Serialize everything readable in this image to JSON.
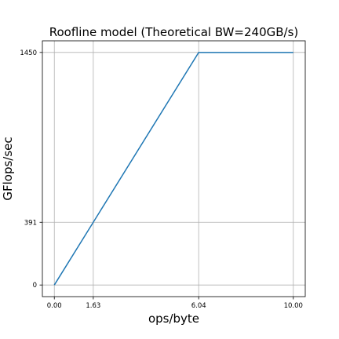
{
  "chart_data": {
    "type": "line",
    "title": "Roofline model (Theoretical BW=240GB/s)",
    "xlabel": "ops/byte",
    "ylabel": "GFlops/sec",
    "x_ticks": [
      {
        "value": 0.0,
        "label": "0.00"
      },
      {
        "value": 1.63,
        "label": "1.63"
      },
      {
        "value": 6.04,
        "label": "6.04"
      },
      {
        "value": 10.0,
        "label": "10.00"
      }
    ],
    "y_ticks": [
      {
        "value": 0,
        "label": "0"
      },
      {
        "value": 391,
        "label": "391"
      },
      {
        "value": 1450,
        "label": "1450"
      }
    ],
    "xlim": [
      -0.5,
      10.5
    ],
    "ylim": [
      -72.5,
      1522.5
    ],
    "grid": true,
    "series": [
      {
        "x": [
          0.0,
          6.04,
          10.0
        ],
        "y": [
          0,
          1450,
          1450
        ],
        "color": "#1f77b4"
      }
    ]
  }
}
